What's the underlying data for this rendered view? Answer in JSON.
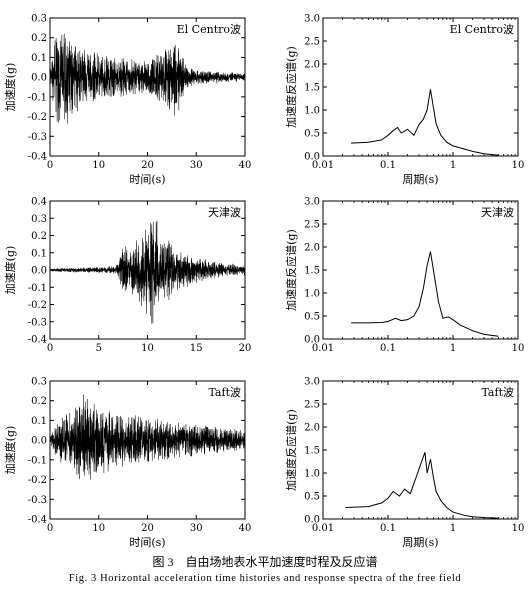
{
  "caption_cn": "图 3　自由场地表水平加速度时程及反应谱",
  "caption_en": "Fig. 3   Horizontal acceleration time histories and response spectra of the free field",
  "chart_data": [
    {
      "type": "line",
      "label": "El Centro波",
      "xlabel": "时间(s)",
      "ylabel": "加速度(g)",
      "xlim": [
        0,
        40
      ],
      "ylim": [
        -0.4,
        0.3
      ],
      "xticks": [
        "0",
        "10",
        "20",
        "30",
        "40"
      ],
      "yticks": [
        "-0.4",
        "-0.3",
        "-0.2",
        "-0.1",
        "0.0",
        "0.1",
        "0.2",
        "0.3"
      ],
      "envelope": {
        "x": [
          0,
          1,
          2,
          3,
          5,
          7,
          10,
          15,
          20,
          25,
          26,
          28,
          30,
          35,
          40
        ],
        "y": [
          0.02,
          0.2,
          0.26,
          0.25,
          0.2,
          0.15,
          0.12,
          0.1,
          0.08,
          0.19,
          0.2,
          0.06,
          0.04,
          0.03,
          0.02
        ]
      }
    },
    {
      "type": "line",
      "label": "El Centro波",
      "xlabel": "周期(s)",
      "ylabel": "加速度反应谱(g)",
      "xscale": "log",
      "xlim": [
        0.01,
        10
      ],
      "ylim": [
        0.0,
        3.0
      ],
      "xticks": [
        "0.01",
        "0.1",
        "1",
        "10"
      ],
      "yticks": [
        "0.0",
        "0.5",
        "1.0",
        "1.5",
        "2.0",
        "2.5",
        "3.0"
      ],
      "x": [
        0.027,
        0.05,
        0.08,
        0.1,
        0.12,
        0.14,
        0.16,
        0.2,
        0.25,
        0.3,
        0.35,
        0.4,
        0.45,
        0.5,
        0.55,
        0.65,
        0.8,
        1.0,
        1.5,
        2.0,
        3.0,
        4.0,
        5.0
      ],
      "y": [
        0.28,
        0.3,
        0.35,
        0.45,
        0.55,
        0.62,
        0.5,
        0.58,
        0.45,
        0.68,
        0.8,
        1.0,
        1.45,
        1.05,
        0.7,
        0.45,
        0.3,
        0.22,
        0.15,
        0.1,
        0.05,
        0.03,
        0.02
      ]
    },
    {
      "type": "line",
      "label": "天津波",
      "xlabel": "",
      "ylabel": "加速度(g)",
      "xlim": [
        0,
        20
      ],
      "ylim": [
        -0.4,
        0.4
      ],
      "xticks": [
        "0",
        "5",
        "10",
        "15",
        "20"
      ],
      "yticks": [
        "-0.4",
        "-0.3",
        "-0.2",
        "-0.1",
        "0.0",
        "0.1",
        "0.2",
        "0.3",
        "0.4"
      ],
      "envelope": {
        "x": [
          0,
          6,
          7,
          7.5,
          8,
          9,
          10,
          10.5,
          11,
          12,
          13,
          14,
          15,
          17,
          20
        ],
        "y": [
          0.01,
          0.02,
          0.04,
          0.17,
          0.12,
          0.2,
          0.28,
          0.32,
          0.3,
          0.2,
          0.12,
          0.1,
          0.08,
          0.05,
          0.03
        ]
      }
    },
    {
      "type": "line",
      "label": "天津波",
      "xlabel": "",
      "ylabel": "加速度反应谱(g)",
      "xscale": "log",
      "xlim": [
        0.01,
        10
      ],
      "ylim": [
        0.0,
        3.0
      ],
      "xticks": [
        "0.01",
        "0.1",
        "1",
        "10"
      ],
      "yticks": [
        "0.0",
        "0.5",
        "1.0",
        "1.5",
        "2.0",
        "2.5",
        "3.0"
      ],
      "x": [
        0.027,
        0.05,
        0.08,
        0.1,
        0.13,
        0.16,
        0.2,
        0.25,
        0.3,
        0.35,
        0.4,
        0.45,
        0.5,
        0.6,
        0.7,
        0.85,
        1.0,
        1.3,
        2.0,
        3.0,
        5.0
      ],
      "y": [
        0.35,
        0.35,
        0.36,
        0.38,
        0.45,
        0.4,
        0.42,
        0.5,
        0.7,
        1.1,
        1.6,
        1.9,
        1.5,
        0.8,
        0.45,
        0.48,
        0.42,
        0.3,
        0.18,
        0.1,
        0.06
      ]
    },
    {
      "type": "line",
      "label": "Taft波",
      "xlabel": "时间(s)",
      "ylabel": "加速度(g)",
      "xlim": [
        0,
        40
      ],
      "ylim": [
        -0.4,
        0.3
      ],
      "xticks": [
        "0",
        "10",
        "20",
        "30",
        "40"
      ],
      "yticks": [
        "-0.4",
        "-0.3",
        "-0.2",
        "-0.1",
        "0.0",
        "0.1",
        "0.2",
        "0.3"
      ],
      "envelope": {
        "x": [
          0,
          1,
          3,
          5,
          7,
          9,
          12,
          16,
          20,
          25,
          30,
          35,
          40
        ],
        "y": [
          0.02,
          0.08,
          0.15,
          0.18,
          0.24,
          0.2,
          0.16,
          0.13,
          0.12,
          0.1,
          0.08,
          0.07,
          0.05
        ]
      }
    },
    {
      "type": "line",
      "label": "Taft波",
      "xlabel": "周期(s)",
      "ylabel": "加速度反应谱(g)",
      "xscale": "log",
      "xlim": [
        0.01,
        10
      ],
      "ylim": [
        0.0,
        3.0
      ],
      "xticks": [
        "0.01",
        "0.1",
        "1",
        "10"
      ],
      "yticks": [
        "0.0",
        "0.5",
        "1.0",
        "1.5",
        "2.0",
        "2.5",
        "3.0"
      ],
      "x": [
        0.022,
        0.05,
        0.08,
        0.1,
        0.12,
        0.15,
        0.18,
        0.22,
        0.27,
        0.32,
        0.37,
        0.4,
        0.45,
        0.5,
        0.55,
        0.65,
        0.8,
        1.0,
        1.5,
        2.0,
        3.0,
        5.0
      ],
      "y": [
        0.25,
        0.27,
        0.35,
        0.45,
        0.6,
        0.5,
        0.65,
        0.55,
        0.9,
        1.2,
        1.45,
        1.0,
        1.3,
        0.9,
        0.6,
        0.4,
        0.25,
        0.15,
        0.08,
        0.05,
        0.03,
        0.02
      ]
    }
  ]
}
